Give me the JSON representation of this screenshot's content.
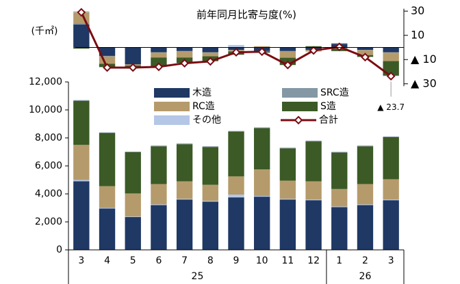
{
  "chart_data": [
    {
      "type": "bar",
      "stacked": true,
      "title": "前年同月比寄与度(%)",
      "ylim": [
        -32,
        32
      ],
      "yticks": [
        30,
        10,
        {
          "value": -10,
          "label": "▲ 10"
        },
        {
          "value": -30,
          "label": "▲ 30"
        }
      ],
      "annotations": [
        {
          "text": "▲ 23.7",
          "index": 12
        }
      ],
      "series": [
        {
          "name": "木造",
          "type": "bar",
          "color": "#1f3864",
          "values": [
            19,
            -7,
            -14,
            -4,
            -3,
            -4,
            -2,
            -3,
            -3,
            -2,
            3,
            -2,
            -4
          ]
        },
        {
          "name": "SRC造",
          "type": "bar",
          "color": "#8497a5",
          "values": [
            1,
            -0.5,
            0,
            -0.3,
            -0.3,
            -0.3,
            -0.3,
            -0.3,
            -0.5,
            -0.3,
            0.5,
            -0.3,
            -0.3
          ]
        },
        {
          "name": "RC造",
          "type": "bar",
          "color": "#b59b6b",
          "values": [
            9,
            -6,
            -1,
            -4,
            -5,
            -3,
            -1,
            1,
            -5,
            -1,
            -1,
            -4,
            -7
          ]
        },
        {
          "name": "S造",
          "type": "bar",
          "color": "#3b5a26",
          "values": [
            -1,
            -2.6,
            -1.3,
            -7.5,
            -4.5,
            -4,
            -2.7,
            -1,
            -6,
            1,
            -2,
            -1.5,
            -12
          ]
        },
        {
          "name": "その他",
          "type": "bar",
          "color": "#b4c7e7",
          "values": [
            1,
            -0.5,
            -0.3,
            -0.2,
            -0.2,
            -0.2,
            2,
            -0.2,
            0,
            -0.2,
            0,
            -0.2,
            -0.4
          ]
        },
        {
          "name": "合計",
          "type": "line",
          "color": "#7b0c12",
          "values": [
            29,
            -16.6,
            -16.6,
            -16,
            -13,
            -11.5,
            -4,
            -3.5,
            -14.5,
            -2.5,
            0.5,
            -8,
            -23.7
          ]
        }
      ]
    },
    {
      "type": "bar",
      "stacked": true,
      "y_label": "(千㎡)",
      "groups": [
        {
          "label": "25",
          "categories": [
            "3",
            "4",
            "5",
            "6",
            "7",
            "8",
            "9",
            "10",
            "11",
            "12"
          ]
        },
        {
          "label": "26",
          "categories": [
            "1",
            "2",
            "3"
          ]
        }
      ],
      "ylim": [
        0,
        12000
      ],
      "yticks": [
        0,
        {
          "value": 2000,
          "label": "2,000"
        },
        {
          "value": 4000,
          "label": "4,000"
        },
        {
          "value": 6000,
          "label": "6,000"
        },
        {
          "value": 8000,
          "label": "8,000"
        },
        {
          "value": 10000,
          "label": "10,000"
        },
        {
          "value": 12000,
          "label": "12,000"
        }
      ],
      "series": [
        {
          "name": "木造",
          "color": "#1f3864",
          "values": [
            4900,
            2950,
            2350,
            3200,
            3600,
            3450,
            3750,
            3800,
            3600,
            3550,
            3050,
            3200,
            3550
          ]
        },
        {
          "name": "その他",
          "color": "#b4c7e7",
          "values": [
            100,
            50,
            30,
            50,
            50,
            50,
            200,
            50,
            50,
            50,
            50,
            50,
            50
          ]
        },
        {
          "name": "RC造",
          "color": "#b59b6b",
          "values": [
            2500,
            1550,
            1650,
            1450,
            1250,
            1150,
            1300,
            1900,
            1300,
            1300,
            1250,
            1450,
            1450
          ]
        },
        {
          "name": "S造",
          "color": "#3b5a26",
          "values": [
            3150,
            3800,
            2950,
            2700,
            2650,
            2700,
            3200,
            2950,
            2300,
            2850,
            2600,
            2700,
            3000
          ]
        },
        {
          "name": "SRC造",
          "color": "#8497a5",
          "values": [
            50,
            50,
            40,
            50,
            50,
            50,
            50,
            50,
            50,
            50,
            50,
            50,
            50
          ]
        }
      ]
    }
  ]
}
